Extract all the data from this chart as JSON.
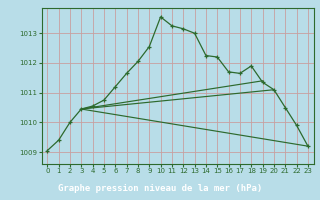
{
  "title": "Graphe pression niveau de la mer (hPa)",
  "bg_color": "#b8dde8",
  "grid_color": "#c8a0a0",
  "line_color": "#2d6a2d",
  "spine_color": "#2d6a2d",
  "xlabel_bg": "#2d6a2d",
  "xlabel_fg": "#ffffff",
  "xlim": [
    -0.5,
    23.5
  ],
  "ylim": [
    1008.6,
    1013.85
  ],
  "yticks": [
    1009,
    1010,
    1011,
    1012,
    1013
  ],
  "xticks": [
    0,
    1,
    2,
    3,
    4,
    5,
    6,
    7,
    8,
    9,
    10,
    11,
    12,
    13,
    14,
    15,
    16,
    17,
    18,
    19,
    20,
    21,
    22,
    23
  ],
  "line1_x": [
    0,
    1,
    2,
    3,
    4,
    5,
    6,
    7,
    8,
    9,
    10,
    11,
    12,
    13,
    14,
    15,
    16,
    17,
    18,
    19,
    20,
    21,
    22,
    23
  ],
  "line1_y": [
    1009.05,
    1009.4,
    1010.0,
    1010.45,
    1010.55,
    1010.75,
    1011.2,
    1011.65,
    1012.05,
    1012.55,
    1013.55,
    1013.25,
    1013.15,
    1013.0,
    1012.25,
    1012.2,
    1011.7,
    1011.65,
    1011.9,
    1011.35,
    1011.1,
    1010.5,
    1009.9,
    1009.2
  ],
  "line2_x": [
    3,
    19
  ],
  "line2_y": [
    1010.45,
    1011.4
  ],
  "line3_x": [
    3,
    20
  ],
  "line3_y": [
    1010.45,
    1011.1
  ],
  "line4_x": [
    3,
    23
  ],
  "line4_y": [
    1010.45,
    1009.2
  ]
}
